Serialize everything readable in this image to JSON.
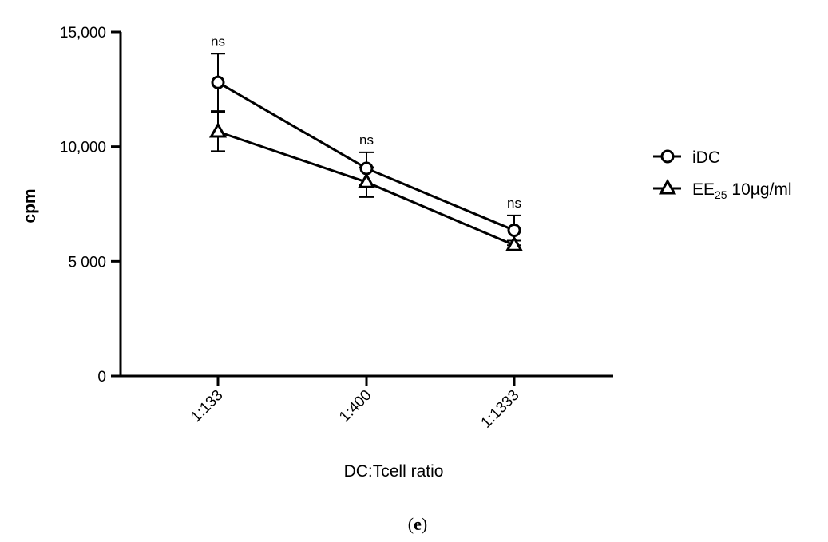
{
  "chart_data": {
    "type": "line",
    "ylabel": "cpm",
    "xlabel": "DC:Tcell ratio",
    "ylim": [
      0,
      15000
    ],
    "yticks": [
      {
        "value": 0,
        "label": "0"
      },
      {
        "value": 5000,
        "label": "5 000"
      },
      {
        "value": 10000,
        "label": "10,000"
      },
      {
        "value": 15000,
        "label": "15,000"
      }
    ],
    "categories": [
      "1:133",
      "1:400",
      "1:1333"
    ],
    "series": [
      {
        "name": "iDC",
        "marker": "circle",
        "color": "#000000",
        "values": [
          12800,
          9050,
          6350
        ],
        "error": [
          1250,
          700,
          650
        ]
      },
      {
        "name_main": "EE",
        "name_sub": "25",
        "name_rest": " 10µg/ml",
        "marker": "triangle",
        "color": "#000000",
        "values": [
          10650,
          8450,
          5700
        ],
        "error": [
          850,
          650,
          200
        ]
      }
    ],
    "annotations": [
      "ns",
      "ns",
      "ns"
    ],
    "legend_position": "right",
    "grid": false
  },
  "caption": {
    "open": "(",
    "letter": "e",
    "close": ")"
  }
}
